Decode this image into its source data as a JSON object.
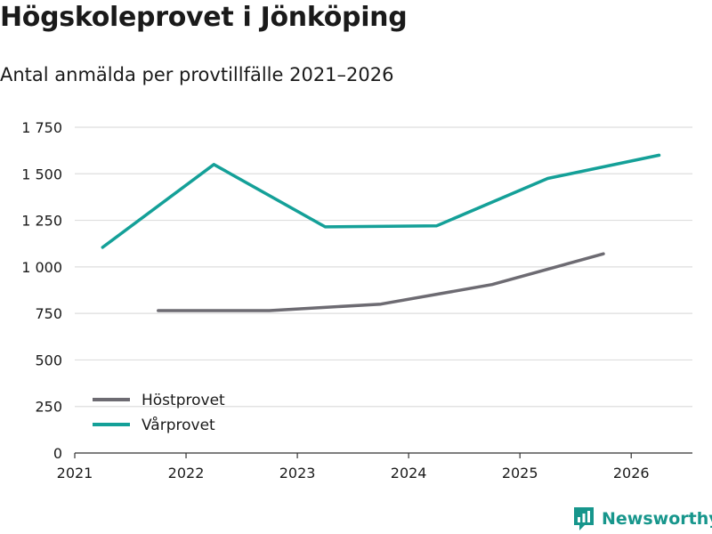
{
  "chart_data": {
    "type": "line",
    "title": "Högskoleprovet i Jönköping",
    "subtitle": "Antal anmälda per provtillfälle 2021–2026",
    "xlabel": "",
    "ylabel": "",
    "xlim": [
      2021,
      2026.55
    ],
    "ylim": [
      0,
      1750
    ],
    "x_ticks": [
      2021,
      2022,
      2023,
      2024,
      2025,
      2026
    ],
    "y_ticks": [
      0,
      250,
      500,
      750,
      1000,
      1250,
      1500,
      1750
    ],
    "y_tick_labels": [
      "0",
      "250",
      "500",
      "750",
      "1 000",
      "1 250",
      "1 500",
      "1 750"
    ],
    "legend_position": "bottom-left",
    "series": [
      {
        "name": "Höstprovet",
        "color": "#6d6b72",
        "x": [
          2021.75,
          2022.75,
          2023.75,
          2024.75,
          2025.75
        ],
        "values": [
          765,
          765,
          800,
          905,
          1070
        ]
      },
      {
        "name": "Vårprovet",
        "color": "#14a098",
        "x": [
          2021.25,
          2022.25,
          2023.25,
          2024.25,
          2025.25,
          2026.25
        ],
        "values": [
          1105,
          1550,
          1215,
          1220,
          1475,
          1600
        ]
      }
    ]
  },
  "brand": {
    "name": "Newsworthy",
    "icon": "newsworthy-logo-icon",
    "color": "#17968c"
  }
}
